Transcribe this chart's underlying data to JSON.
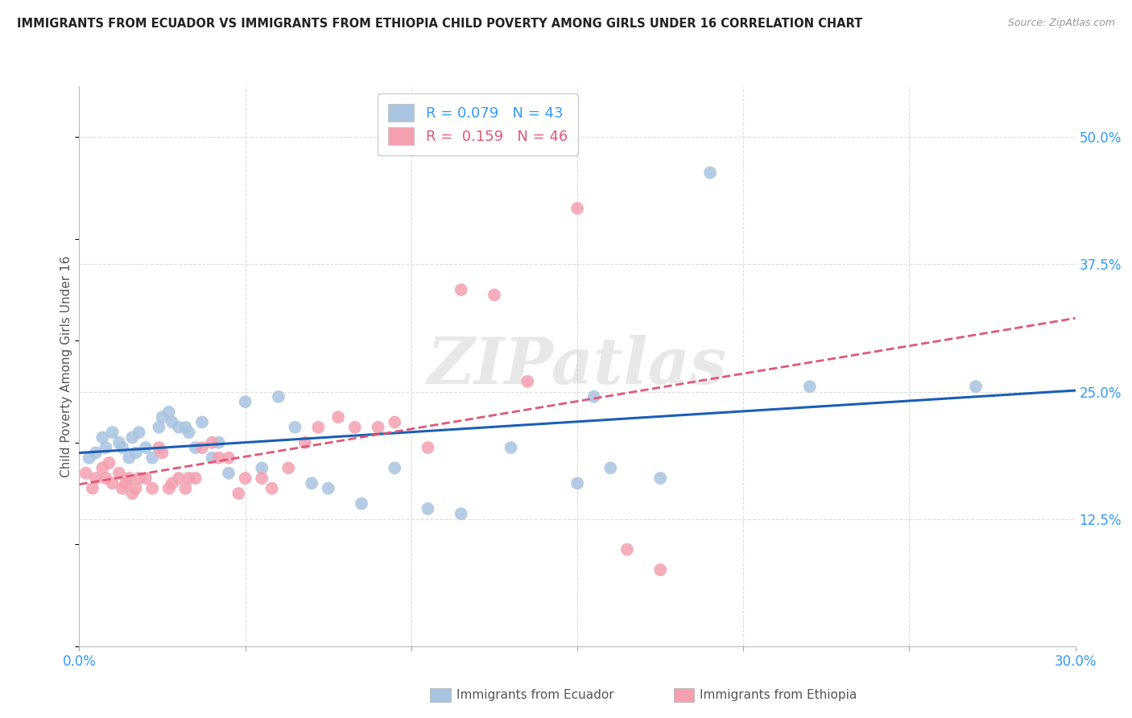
{
  "title": "IMMIGRANTS FROM ECUADOR VS IMMIGRANTS FROM ETHIOPIA CHILD POVERTY AMONG GIRLS UNDER 16 CORRELATION CHART",
  "source": "Source: ZipAtlas.com",
  "ylabel": "Child Poverty Among Girls Under 16",
  "xlim": [
    0.0,
    0.3
  ],
  "ylim": [
    0.0,
    0.55
  ],
  "xticks": [
    0.0,
    0.05,
    0.1,
    0.15,
    0.2,
    0.25,
    0.3
  ],
  "xticklabels": [
    "0.0%",
    "",
    "",
    "",
    "",
    "",
    "30.0%"
  ],
  "yticks_right": [
    0.125,
    0.25,
    0.375,
    0.5
  ],
  "ytick_labels_right": [
    "12.5%",
    "25.0%",
    "37.5%",
    "50.0%"
  ],
  "watermark": "ZIPatlas",
  "ecuador_color": "#a8c4e0",
  "ethiopia_color": "#f4a0b0",
  "ecuador_line_color": "#1a5fb4",
  "ethiopia_line_color": "#e05878",
  "R_ecuador": 0.079,
  "N_ecuador": 43,
  "R_ethiopia": 0.159,
  "N_ethiopia": 46,
  "ecuador_x": [
    0.003,
    0.005,
    0.007,
    0.008,
    0.01,
    0.012,
    0.013,
    0.015,
    0.016,
    0.017,
    0.018,
    0.02,
    0.022,
    0.024,
    0.025,
    0.027,
    0.028,
    0.03,
    0.032,
    0.033,
    0.035,
    0.037,
    0.04,
    0.042,
    0.045,
    0.05,
    0.055,
    0.06,
    0.065,
    0.07,
    0.075,
    0.085,
    0.095,
    0.105,
    0.115,
    0.13,
    0.15,
    0.155,
    0.16,
    0.175,
    0.19,
    0.22,
    0.27
  ],
  "ecuador_y": [
    0.185,
    0.19,
    0.205,
    0.195,
    0.21,
    0.2,
    0.195,
    0.185,
    0.205,
    0.19,
    0.21,
    0.195,
    0.185,
    0.215,
    0.225,
    0.23,
    0.22,
    0.215,
    0.215,
    0.21,
    0.195,
    0.22,
    0.185,
    0.2,
    0.17,
    0.24,
    0.175,
    0.245,
    0.215,
    0.16,
    0.155,
    0.14,
    0.175,
    0.135,
    0.13,
    0.195,
    0.16,
    0.245,
    0.175,
    0.165,
    0.465,
    0.255,
    0.255
  ],
  "ethiopia_x": [
    0.002,
    0.004,
    0.005,
    0.007,
    0.008,
    0.009,
    0.01,
    0.012,
    0.013,
    0.014,
    0.015,
    0.016,
    0.017,
    0.018,
    0.02,
    0.022,
    0.024,
    0.025,
    0.027,
    0.028,
    0.03,
    0.032,
    0.033,
    0.035,
    0.037,
    0.04,
    0.042,
    0.045,
    0.048,
    0.05,
    0.055,
    0.058,
    0.063,
    0.068,
    0.072,
    0.078,
    0.083,
    0.09,
    0.095,
    0.105,
    0.115,
    0.125,
    0.135,
    0.15,
    0.165,
    0.175
  ],
  "ethiopia_y": [
    0.17,
    0.155,
    0.165,
    0.175,
    0.165,
    0.18,
    0.16,
    0.17,
    0.155,
    0.16,
    0.165,
    0.15,
    0.155,
    0.165,
    0.165,
    0.155,
    0.195,
    0.19,
    0.155,
    0.16,
    0.165,
    0.155,
    0.165,
    0.165,
    0.195,
    0.2,
    0.185,
    0.185,
    0.15,
    0.165,
    0.165,
    0.155,
    0.175,
    0.2,
    0.215,
    0.225,
    0.215,
    0.215,
    0.22,
    0.195,
    0.35,
    0.345,
    0.26,
    0.43,
    0.095,
    0.075
  ],
  "background_color": "#ffffff",
  "grid_color": "#dddddd"
}
